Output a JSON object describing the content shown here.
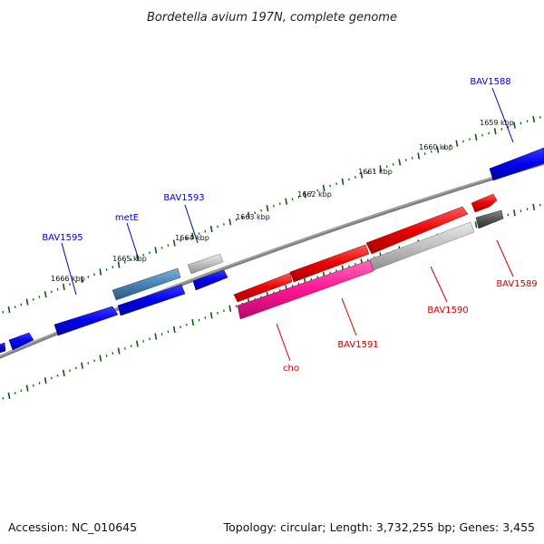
{
  "header": {
    "title": "Bordetella avium 197N, complete genome"
  },
  "footer": {
    "accession": "Accession: NC_010645",
    "summary": "Topology: circular; Length: 3,732,255 bp; Genes: 3,455"
  },
  "ticks": [
    "1659 kbp",
    "1660 kbp",
    "1661 kbp",
    "1662 kbp",
    "1663 kbp",
    "1664 kbp",
    "1665 kbp",
    "1666 kbp"
  ],
  "gene_labels": [
    {
      "name": "BAV1588",
      "color": "#0000cc"
    },
    {
      "name": "BAV1593",
      "color": "#0000cc"
    },
    {
      "name": "metE",
      "color": "#0000cc"
    },
    {
      "name": "BAV1595",
      "color": "#0000cc"
    },
    {
      "name": "BAV1589",
      "color": "#cc0000"
    },
    {
      "name": "BAV1590",
      "color": "#cc0000"
    },
    {
      "name": "BAV1591",
      "color": "#cc0000"
    },
    {
      "name": "cho",
      "color": "#cc0000"
    }
  ],
  "colors": {
    "forward_gene": "#0000ee",
    "forward_highlight": "#4682b4",
    "reverse_gene": "#ee0000",
    "reverse_highlight": "#ff1493",
    "pseudo_gene": "#c0c0c0",
    "dark_gene": "#555555",
    "backbone": "#808080",
    "tick_marks": "#006400"
  }
}
